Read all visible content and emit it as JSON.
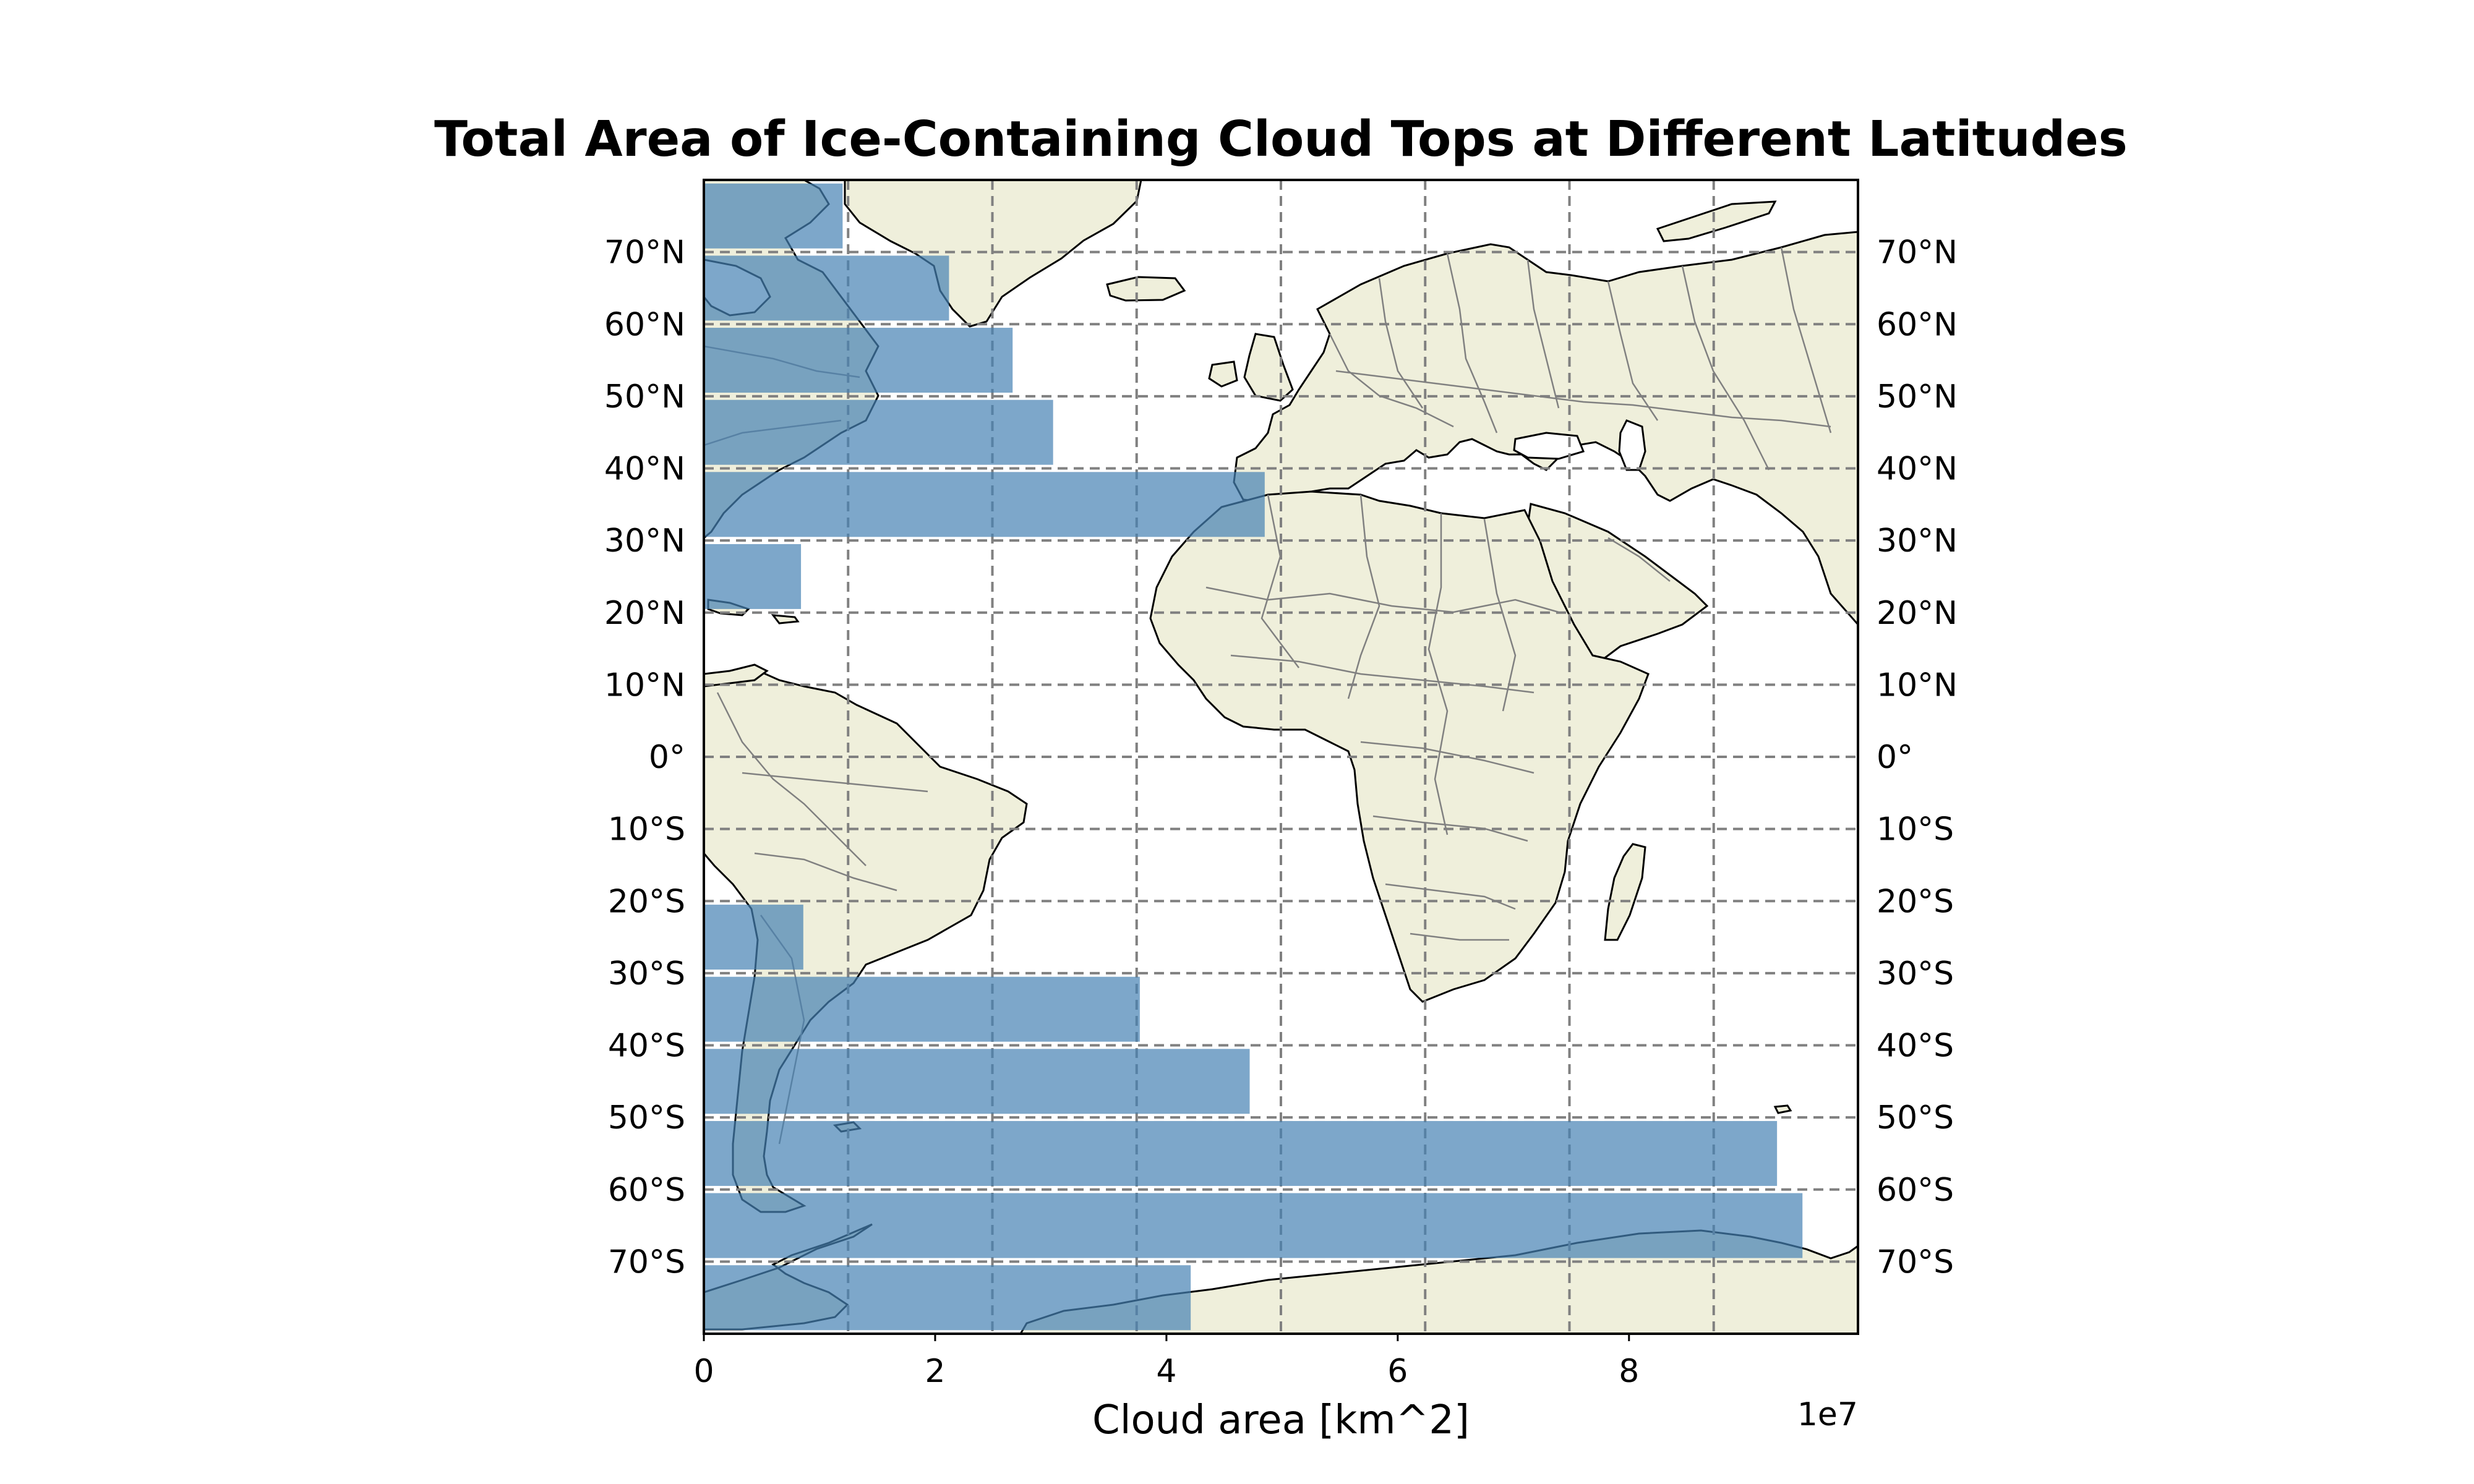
{
  "chart_data": {
    "type": "bar",
    "orientation": "horizontal",
    "title": "Total Area of Ice-Containing Cloud Tops at Different Latitudes",
    "xlabel": "Cloud area [km^2]",
    "ylabel": "",
    "x_scale_label": "1e7",
    "xlim": [
      0,
      99800000
    ],
    "ylim": [
      -80,
      80
    ],
    "x_ticks": [
      0,
      20000000,
      40000000,
      60000000,
      80000000
    ],
    "x_tick_labels": [
      "0",
      "2",
      "4",
      "6",
      "8"
    ],
    "lat_gridlines": [
      70,
      60,
      50,
      40,
      30,
      20,
      10,
      0,
      -10,
      -20,
      -30,
      -40,
      -50,
      -60,
      -70
    ],
    "lat_tick_labels": [
      "70°N",
      "60°N",
      "50°N",
      "40°N",
      "30°N",
      "20°N",
      "10°N",
      "0°",
      "10°S",
      "20°S",
      "30°S",
      "40°S",
      "50°S",
      "60°S",
      "70°S"
    ],
    "lon_gridlines": [
      -30,
      -20,
      -10,
      0,
      10,
      20,
      30,
      40
    ],
    "categories": [
      "70–80°N",
      "60–70°N",
      "50–60°N",
      "40–50°N",
      "30–40°N",
      "20–30°N",
      "10–20°N",
      "0–10°N",
      "0–10°S",
      "10–20°S",
      "20–30°S",
      "30–40°S",
      "40–50°S",
      "50–60°S",
      "60–70°S",
      "70–80°S"
    ],
    "lat_bins": [
      [
        70,
        80
      ],
      [
        60,
        70
      ],
      [
        50,
        60
      ],
      [
        40,
        50
      ],
      [
        30,
        40
      ],
      [
        20,
        30
      ],
      [
        10,
        20
      ],
      [
        0,
        10
      ],
      [
        -10,
        0
      ],
      [
        -20,
        -10
      ],
      [
        -30,
        -20
      ],
      [
        -40,
        -30
      ],
      [
        -50,
        -40
      ],
      [
        -60,
        -50
      ],
      [
        -70,
        -60
      ],
      [
        -80,
        -70
      ]
    ],
    "values": [
      12000000,
      21200000,
      26700000,
      30200000,
      48500000,
      8400000,
      0,
      0,
      0,
      0,
      8600000,
      37700000,
      47200000,
      92800000,
      95000000,
      42100000
    ],
    "bar_color": "#4682b4",
    "background": "map: Atlantic / Europe / Africa / South America, land shaded beige",
    "land_color": "#efefdb",
    "grid": true
  }
}
